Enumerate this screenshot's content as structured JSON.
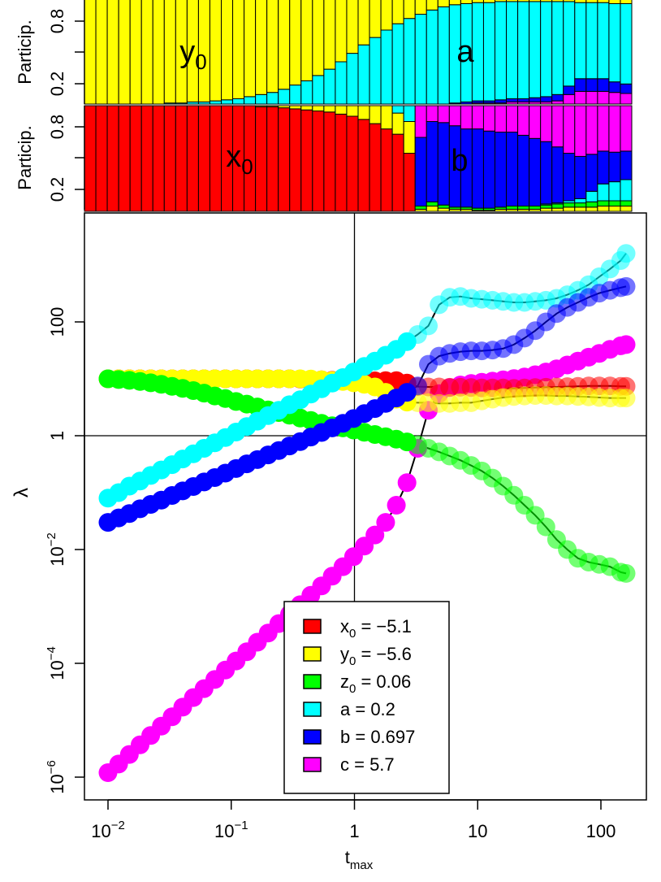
{
  "chart_data": [
    {
      "id": "participation-top",
      "type": "bar",
      "stacked": true,
      "ylabel": "Particip.",
      "yticks": [
        "0.2",
        "0.8"
      ],
      "ylim": [
        0,
        1
      ],
      "annotations": [
        {
          "label_main": "y",
          "label_sub": "0",
          "near_series": "y0"
        },
        {
          "label_main": "a",
          "label_sub": "",
          "near_series": "a"
        }
      ],
      "n_bars": 48,
      "series_order": [
        "c",
        "b",
        "a",
        "y0"
      ],
      "series": [
        {
          "key": "y0",
          "values": [
            1.0,
            1.0,
            1.0,
            1.0,
            1.0,
            1.0,
            1.0,
            0.99,
            0.99,
            0.98,
            0.98,
            0.97,
            0.96,
            0.95,
            0.93,
            0.91,
            0.89,
            0.86,
            0.82,
            0.78,
            0.73,
            0.67,
            0.6,
            0.52,
            0.44,
            0.37,
            0.3,
            0.24,
            0.19,
            0.15,
            0.11,
            0.08,
            0.06,
            0.05,
            0.04,
            0.04,
            0.03,
            0.03,
            0.03,
            0.03,
            0.03,
            0.03,
            0.03,
            0.04,
            0.04,
            0.04,
            0.05,
            0.05
          ]
        },
        {
          "key": "a",
          "values": [
            0.0,
            0.0,
            0.0,
            0.0,
            0.0,
            0.0,
            0.0,
            0.01,
            0.01,
            0.02,
            0.02,
            0.03,
            0.04,
            0.05,
            0.07,
            0.09,
            0.11,
            0.14,
            0.18,
            0.22,
            0.27,
            0.33,
            0.4,
            0.48,
            0.56,
            0.63,
            0.7,
            0.76,
            0.81,
            0.85,
            0.89,
            0.92,
            0.93,
            0.93,
            0.93,
            0.93,
            0.93,
            0.92,
            0.92,
            0.91,
            0.9,
            0.88,
            0.8,
            0.72,
            0.72,
            0.72,
            0.74,
            0.76
          ]
        },
        {
          "key": "b",
          "values": [
            0.0,
            0.0,
            0.0,
            0.0,
            0.0,
            0.0,
            0.0,
            0.0,
            0.0,
            0.0,
            0.0,
            0.0,
            0.0,
            0.0,
            0.0,
            0.0,
            0.0,
            0.0,
            0.0,
            0.0,
            0.0,
            0.0,
            0.0,
            0.0,
            0.0,
            0.0,
            0.0,
            0.0,
            0.0,
            0.0,
            0.0,
            0.0,
            0.01,
            0.02,
            0.02,
            0.02,
            0.03,
            0.03,
            0.03,
            0.04,
            0.05,
            0.06,
            0.08,
            0.12,
            0.12,
            0.12,
            0.1,
            0.09
          ]
        },
        {
          "key": "c",
          "values": [
            0.0,
            0.0,
            0.0,
            0.0,
            0.0,
            0.0,
            0.0,
            0.0,
            0.0,
            0.0,
            0.0,
            0.0,
            0.0,
            0.0,
            0.0,
            0.0,
            0.0,
            0.0,
            0.0,
            0.0,
            0.0,
            0.0,
            0.0,
            0.0,
            0.0,
            0.0,
            0.0,
            0.0,
            0.0,
            0.0,
            0.0,
            0.0,
            0.0,
            0.0,
            0.01,
            0.01,
            0.01,
            0.02,
            0.02,
            0.02,
            0.02,
            0.03,
            0.09,
            0.12,
            0.12,
            0.12,
            0.11,
            0.1
          ]
        }
      ]
    },
    {
      "id": "participation-bottom",
      "type": "bar",
      "stacked": true,
      "ylabel": "Particip.",
      "yticks": [
        "0.2",
        "0.8"
      ],
      "ylim": [
        0,
        1
      ],
      "annotations": [
        {
          "label_main": "x",
          "label_sub": "0",
          "near_series": "x0"
        },
        {
          "label_main": "b",
          "label_sub": "",
          "near_series": "b"
        }
      ],
      "n_bars": 48,
      "series_order": [
        "x0",
        "y0",
        "z0",
        "a",
        "b",
        "c"
      ],
      "series": [
        {
          "key": "x0",
          "values": [
            1.0,
            1.0,
            1.0,
            1.0,
            1.0,
            1.0,
            1.0,
            1.0,
            1.0,
            1.0,
            1.0,
            1.0,
            1.0,
            1.0,
            1.0,
            0.99,
            0.99,
            0.98,
            0.97,
            0.96,
            0.95,
            0.94,
            0.92,
            0.9,
            0.87,
            0.83,
            0.78,
            0.73,
            0.55,
            0.0,
            0.0,
            0.0,
            0.0,
            0.0,
            0.0,
            0.0,
            0.0,
            0.0,
            0.0,
            0.0,
            0.0,
            0.0,
            0.0,
            0.0,
            0.0,
            0.0,
            0.0,
            0.0
          ]
        },
        {
          "key": "y0",
          "values": [
            0.0,
            0.0,
            0.0,
            0.0,
            0.0,
            0.0,
            0.0,
            0.0,
            0.0,
            0.0,
            0.0,
            0.0,
            0.0,
            0.0,
            0.0,
            0.01,
            0.01,
            0.02,
            0.03,
            0.04,
            0.05,
            0.06,
            0.08,
            0.1,
            0.13,
            0.17,
            0.22,
            0.2,
            0.3,
            0.02,
            0.05,
            0.03,
            0.02,
            0.02,
            0.01,
            0.01,
            0.02,
            0.02,
            0.02,
            0.02,
            0.03,
            0.03,
            0.04,
            0.04,
            0.04,
            0.05,
            0.05,
            0.05
          ]
        },
        {
          "key": "z0",
          "values": [
            0.0,
            0.0,
            0.0,
            0.0,
            0.0,
            0.0,
            0.0,
            0.0,
            0.0,
            0.0,
            0.0,
            0.0,
            0.0,
            0.0,
            0.0,
            0.0,
            0.0,
            0.0,
            0.0,
            0.0,
            0.0,
            0.0,
            0.0,
            0.0,
            0.0,
            0.0,
            0.0,
            0.0,
            0.0,
            0.03,
            0.04,
            0.03,
            0.02,
            0.02,
            0.02,
            0.02,
            0.02,
            0.03,
            0.03,
            0.03,
            0.03,
            0.04,
            0.04,
            0.04,
            0.05,
            0.05,
            0.05,
            0.05
          ]
        },
        {
          "key": "a",
          "values": [
            0.0,
            0.0,
            0.0,
            0.0,
            0.0,
            0.0,
            0.0,
            0.0,
            0.0,
            0.0,
            0.0,
            0.0,
            0.0,
            0.0,
            0.0,
            0.0,
            0.0,
            0.0,
            0.0,
            0.0,
            0.0,
            0.0,
            0.0,
            0.0,
            0.0,
            0.0,
            0.0,
            0.07,
            0.15,
            0.0,
            0.0,
            0.0,
            0.0,
            0.0,
            0.0,
            0.0,
            0.0,
            0.0,
            0.0,
            0.0,
            0.01,
            0.01,
            0.02,
            0.04,
            0.1,
            0.16,
            0.18,
            0.2
          ]
        },
        {
          "key": "b",
          "values": [
            0.0,
            0.0,
            0.0,
            0.0,
            0.0,
            0.0,
            0.0,
            0.0,
            0.0,
            0.0,
            0.0,
            0.0,
            0.0,
            0.0,
            0.0,
            0.0,
            0.0,
            0.0,
            0.0,
            0.0,
            0.0,
            0.0,
            0.0,
            0.0,
            0.0,
            0.0,
            0.0,
            0.0,
            0.0,
            0.65,
            0.76,
            0.78,
            0.77,
            0.74,
            0.75,
            0.73,
            0.71,
            0.7,
            0.67,
            0.64,
            0.59,
            0.53,
            0.45,
            0.4,
            0.35,
            0.31,
            0.28,
            0.27
          ]
        },
        {
          "key": "c",
          "values": [
            0.0,
            0.0,
            0.0,
            0.0,
            0.0,
            0.0,
            0.0,
            0.0,
            0.0,
            0.0,
            0.0,
            0.0,
            0.0,
            0.0,
            0.0,
            0.0,
            0.0,
            0.0,
            0.0,
            0.0,
            0.0,
            0.0,
            0.0,
            0.0,
            0.0,
            0.0,
            0.0,
            0.0,
            0.0,
            0.3,
            0.15,
            0.16,
            0.19,
            0.22,
            0.22,
            0.24,
            0.25,
            0.25,
            0.28,
            0.31,
            0.34,
            0.39,
            0.45,
            0.48,
            0.46,
            0.43,
            0.44,
            0.43
          ]
        }
      ]
    },
    {
      "id": "lambda-vs-tmax",
      "type": "scatter",
      "x_log": true,
      "y_log": true,
      "xlabel_main": "t",
      "xlabel_sub": "max",
      "ylabel": "λ",
      "xlim": [
        0.007,
        200
      ],
      "ylim": [
        5e-07,
        5000
      ],
      "xticks": [
        {
          "value": 0.01,
          "mant": "10",
          "exp": "−2"
        },
        {
          "value": 0.1,
          "mant": "10",
          "exp": "−1"
        },
        {
          "value": 1,
          "mant": "1",
          "exp": ""
        },
        {
          "value": 10,
          "mant": "10",
          "exp": ""
        },
        {
          "value": 100,
          "mant": "100",
          "exp": ""
        }
      ],
      "yticks": [
        {
          "value": 1e-06,
          "mant": "10",
          "exp": "−6"
        },
        {
          "value": 0.0001,
          "mant": "10",
          "exp": "−4"
        },
        {
          "value": 0.01,
          "mant": "10",
          "exp": "−2"
        },
        {
          "value": 1,
          "mant": "1",
          "exp": ""
        },
        {
          "value": 100,
          "mant": "100",
          "exp": ""
        }
      ],
      "reference_lines": {
        "x": 1,
        "y": 1
      },
      "x": [
        0.01,
        0.0122,
        0.0149,
        0.0182,
        0.0222,
        0.0271,
        0.0331,
        0.0404,
        0.0493,
        0.0602,
        0.0735,
        0.0897,
        0.1095,
        0.1337,
        0.1632,
        0.1993,
        0.2433,
        0.2971,
        0.3627,
        0.4428,
        0.5406,
        0.6601,
        0.8059,
        0.984,
        1.2014,
        1.4668,
        1.7909,
        2.1866,
        2.6697,
        3.2596,
        3.9798,
        4.8592,
        5.9329,
        7.2438,
        8.8444,
        10.7986,
        13.1845,
        16.0977,
        19.6546,
        23.9974,
        29.2998,
        35.7737,
        43.6779,
        53.329,
        65.1124,
        79.5,
        97.06,
        118.51,
        144.7,
        160
      ],
      "series": [
        {
          "key": "x0",
          "color": "#FF0000",
          "legend_main": "x",
          "legend_sub": "0",
          "legend_value": " = −5.1",
          "y": [
            10,
            10,
            10,
            10,
            10,
            10,
            10,
            10,
            10,
            10,
            10,
            10,
            10,
            10,
            10,
            10,
            10,
            10,
            9.9,
            9.8,
            9.6,
            9.4,
            9.2,
            9.1,
            9.1,
            9.2,
            9.3,
            9.3,
            8.4,
            7.3,
            7.2,
            7.2,
            7.1,
            7.1,
            7.0,
            6.9,
            6.9,
            6.9,
            6.8,
            6.9,
            7.0,
            7.1,
            7.2,
            7.3,
            7.4,
            7.5,
            7.5,
            7.5,
            7.4,
            7.4
          ]
        },
        {
          "key": "y0",
          "color": "#FFFF00",
          "legend_main": "y",
          "legend_sub": "0",
          "legend_value": " = −5.6",
          "y": [
            10,
            10,
            10,
            10,
            10,
            10,
            10,
            10,
            10,
            10,
            10,
            10,
            10,
            10,
            10,
            10,
            10,
            10,
            10,
            9.9,
            9.6,
            9.3,
            9.0,
            8.5,
            8.0,
            7.2,
            5.8,
            4.4,
            3.9,
            3.8,
            3.8,
            3.7,
            3.7,
            3.8,
            3.8,
            4.1,
            4.4,
            4.7,
            4.9,
            5.0,
            5.1,
            5.1,
            5.0,
            5.0,
            4.9,
            4.8,
            4.7,
            4.6,
            4.6,
            4.6
          ]
        },
        {
          "key": "z0",
          "color": "#00FF00",
          "legend_main": "z",
          "legend_sub": "0",
          "legend_value": " = 0.06",
          "y": [
            10,
            9.7,
            9.4,
            9.0,
            8.5,
            8.0,
            7.4,
            6.8,
            6.2,
            5.6,
            5.0,
            4.5,
            4.0,
            3.6,
            3.2,
            2.85,
            2.55,
            2.3,
            2.05,
            1.85,
            1.65,
            1.5,
            1.37,
            1.26,
            1.15,
            1.05,
            0.96,
            0.87,
            0.78,
            0.69,
            0.6,
            0.52,
            0.44,
            0.37,
            0.3,
            0.24,
            0.18,
            0.13,
            0.09,
            0.06,
            0.04,
            0.025,
            0.015,
            0.01,
            0.007,
            0.006,
            0.0055,
            0.005,
            0.004,
            0.0038
          ]
        },
        {
          "key": "a",
          "color": "#00FFFF",
          "legend_main": "a",
          "legend_sub": "",
          "legend_value": " = 0.2",
          "y": [
            0.08,
            0.1,
            0.13,
            0.16,
            0.2,
            0.25,
            0.31,
            0.39,
            0.48,
            0.6,
            0.75,
            0.93,
            1.16,
            1.45,
            1.8,
            2.25,
            2.8,
            3.5,
            4.3,
            5.4,
            6.7,
            8.4,
            10.5,
            13.2,
            16.5,
            20.5,
            26,
            33,
            45,
            60,
            85,
            200,
            270,
            280,
            260,
            250,
            240,
            230,
            220,
            220,
            230,
            240,
            260,
            300,
            360,
            450,
            620,
            850,
            1200,
            1600
          ]
        },
        {
          "key": "b",
          "color": "#0000FF",
          "legend_main": "b",
          "legend_sub": "",
          "legend_value": " = 0.697",
          "y": [
            0.03,
            0.036,
            0.043,
            0.052,
            0.062,
            0.074,
            0.089,
            0.107,
            0.128,
            0.154,
            0.184,
            0.22,
            0.265,
            0.32,
            0.38,
            0.46,
            0.55,
            0.66,
            0.79,
            0.95,
            1.14,
            1.37,
            1.65,
            2.0,
            2.45,
            3.0,
            3.7,
            4.6,
            5.8,
            7.5,
            18,
            25,
            28,
            30,
            31,
            31,
            32,
            34,
            40,
            52,
            70,
            100,
            140,
            180,
            220,
            270,
            320,
            360,
            400,
            420
          ]
        },
        {
          "key": "c",
          "color": "#FF00FF",
          "legend_main": "c",
          "legend_sub": "",
          "legend_value": " = 5.7",
          "y": [
            1.2e-06,
            1.7e-06,
            2.5e-06,
            3.7e-06,
            5.4e-06,
            7.9e-06,
            1.15e-05,
            1.7e-05,
            2.5e-05,
            3.6e-05,
            5.2e-05,
            7.6e-05,
            0.00011,
            0.00016,
            0.000235,
            0.00034,
            0.0005,
            0.00073,
            0.00107,
            0.00157,
            0.0023,
            0.0034,
            0.005,
            0.0075,
            0.0115,
            0.018,
            0.03,
            0.06,
            0.15,
            0.6,
            2.8,
            5.5,
            7.0,
            7.8,
            8.3,
            8.7,
            9.1,
            9.6,
            10.1,
            10.8,
            11.8,
            13.2,
            15,
            17.5,
            20.5,
            24,
            28,
            33,
            38,
            40
          ]
        }
      ]
    }
  ]
}
